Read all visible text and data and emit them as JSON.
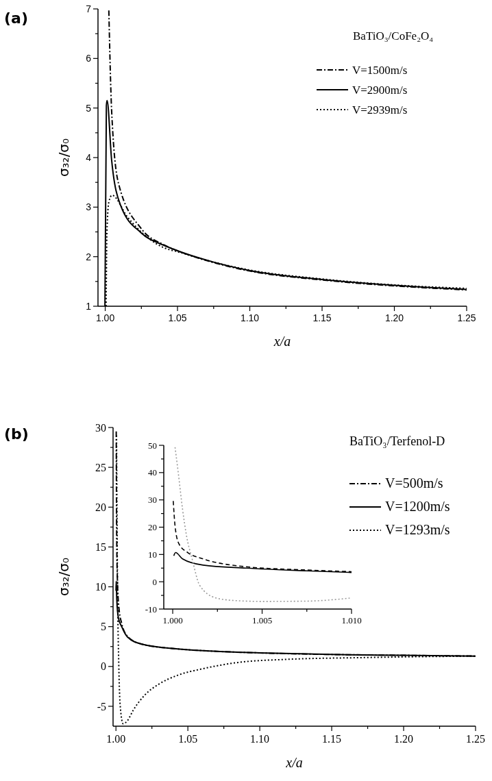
{
  "chart_data": [
    {
      "type": "line",
      "title": "(a)",
      "xlabel": "x/a",
      "ylabel": "σ₃₂/σ₀",
      "legend_title": "BaTiO₃/CoFe₂O₄",
      "legend": "top right",
      "xlim": [
        0.995,
        1.25
      ],
      "xticks": [
        {
          "value": 1,
          "label": "1.00"
        },
        {
          "value": 1.025,
          "label": null
        },
        {
          "value": 1.05,
          "label": "1.05"
        },
        {
          "value": 1.075,
          "label": null
        },
        {
          "value": 1.1,
          "label": "1.10"
        },
        {
          "value": 1.125,
          "label": null
        },
        {
          "value": 1.15,
          "label": "1.15"
        },
        {
          "value": 1.175,
          "label": null
        },
        {
          "value": 1.2,
          "label": "1.20"
        },
        {
          "value": 1.225,
          "label": null
        },
        {
          "value": 1.25,
          "label": "1.25"
        }
      ],
      "ylim": [
        1,
        7
      ],
      "yticks": [
        1,
        {
          "value": 1.5,
          "label": null
        },
        2,
        {
          "value": 2.5,
          "label": null
        },
        3,
        {
          "value": 3.5,
          "label": null
        },
        4,
        {
          "value": 4.5,
          "label": null
        },
        5,
        {
          "value": 5.5,
          "label": null
        },
        6,
        {
          "value": 6.5,
          "label": null
        },
        7
      ],
      "series": [
        {
          "name": "V=1500m/s",
          "color": "#000000",
          "line_style": "dashdot",
          "x": [
            1.0025,
            1.0044,
            1.0091,
            1.0248,
            1.0406,
            1.05,
            1.075,
            1.1,
            1.15,
            1.2,
            1.25
          ],
          "values": [
            6.97,
            4.97,
            3.49,
            2.57,
            2.24,
            2.12,
            1.88,
            1.71,
            1.53,
            1.41,
            1.33
          ]
        },
        {
          "name": "V=2900m/s",
          "color": "#000000",
          "line_style": "solid",
          "x": [
            0.9998,
            1.0008,
            1.0013,
            1.0044,
            1.0107,
            1.0249,
            1.0406,
            1.05,
            1.075,
            1.1,
            1.15,
            1.2,
            1.25
          ],
          "values": [
            1,
            5.05,
            5.15,
            3.96,
            3.03,
            2.48,
            2.23,
            2.12,
            1.89,
            1.72,
            1.54,
            1.42,
            1.34
          ]
        },
        {
          "name": "V=2939m/s",
          "color": "#000000",
          "line_style": "dotted",
          "x": [
            1.0006,
            1.0012,
            1.0025,
            1.0047,
            1.0154,
            1.0296,
            1.0406,
            1.05,
            1.075,
            1.1,
            1.15,
            1.2,
            1.25
          ],
          "values": [
            1,
            2.5,
            3.1,
            3.24,
            2.8,
            2.38,
            2.18,
            2.1,
            1.89,
            1.73,
            1.55,
            1.43,
            1.36
          ]
        }
      ]
    },
    {
      "type": "line",
      "title": "(b)",
      "xlabel": "x/a",
      "ylabel": "σ₃₂/σ₀",
      "legend_title": "BaTiO₃/Terfenol-D",
      "legend": "top right",
      "xlim": [
        0.998,
        1.25
      ],
      "xticks": [
        {
          "value": 1,
          "label": "1.00"
        },
        {
          "value": 1.025,
          "label": null
        },
        {
          "value": 1.05,
          "label": "1.05"
        },
        {
          "value": 1.075,
          "label": null
        },
        {
          "value": 1.1,
          "label": "1.10"
        },
        {
          "value": 1.125,
          "label": null
        },
        {
          "value": 1.15,
          "label": "1.15"
        },
        {
          "value": 1.175,
          "label": null
        },
        {
          "value": 1.2,
          "label": "1.20"
        },
        {
          "value": 1.225,
          "label": null
        },
        {
          "value": 1.25,
          "label": "1.25"
        }
      ],
      "ylim": [
        -7.5,
        30
      ],
      "yticks": [
        -5,
        {
          "value": -2.5,
          "label": null
        },
        0,
        {
          "value": 2.5,
          "label": null
        },
        5,
        {
          "value": 7.5,
          "label": null
        },
        10,
        {
          "value": 12.5,
          "label": null
        },
        15,
        {
          "value": 17.5,
          "label": null
        },
        20,
        {
          "value": 22.5,
          "label": null
        },
        25,
        {
          "value": 27.5,
          "label": null
        },
        30
      ],
      "series": [
        {
          "name": "V=500m/s",
          "color": "#000000",
          "line_style": "dashdot",
          "x": [
            1.0002,
            1.0005,
            1.001,
            1.002,
            1.004,
            1.008,
            1.018,
            1.043,
            1.07,
            1.1,
            1.15,
            1.2,
            1.25
          ],
          "values": [
            29.5,
            17,
            11,
            7.5,
            5.4,
            3.8,
            2.8,
            2.2,
            1.9,
            1.7,
            1.5,
            1.4,
            1.3
          ]
        },
        {
          "name": "V=1200m/s",
          "color": "#000000",
          "line_style": "solid",
          "x": [
            1.00005,
            1.00016,
            1.0006,
            1.0017,
            1.004,
            1.008,
            1.018,
            1.043,
            1.07,
            1.1,
            1.15,
            1.2,
            1.25
          ],
          "values": [
            9.5,
            10.7,
            8.4,
            6.1,
            5.0,
            3.7,
            2.8,
            2.2,
            1.9,
            1.7,
            1.5,
            1.4,
            1.3
          ]
        },
        {
          "name": "V=1293m/s",
          "color": "#000000",
          "line_style": "dotted",
          "x": [
            1.0004,
            1.001,
            1.002,
            1.003,
            1.005,
            1.008,
            1.012,
            1.02,
            1.03,
            1.043,
            1.06,
            1.085,
            1.12,
            1.168,
            1.2,
            1.25
          ],
          "values": [
            29,
            12,
            0,
            -5,
            -7.2,
            -6.8,
            -5.5,
            -3.6,
            -2.2,
            -1.1,
            -0.3,
            0.5,
            0.9,
            1.1,
            1.2,
            1.3
          ]
        }
      ]
    },
    {
      "type": "line",
      "xlim": [
        0.9995,
        1.01
      ],
      "xticks": [
        {
          "value": 1,
          "label": "1.000"
        },
        {
          "value": 1.0025,
          "label": null
        },
        {
          "value": 1.005,
          "label": "1.005"
        },
        {
          "value": 1.0075,
          "label": null
        },
        {
          "value": 1.01,
          "label": "1.010"
        }
      ],
      "ylim": [
        -10,
        50
      ],
      "yticks": [
        -10,
        {
          "value": -5,
          "label": null
        },
        0,
        {
          "value": 5,
          "label": null
        },
        10,
        {
          "value": 15,
          "label": null
        },
        20,
        {
          "value": 25,
          "label": null
        },
        30,
        {
          "value": 35,
          "label": null
        },
        40,
        {
          "value": 45,
          "label": null
        },
        50
      ],
      "series": [
        {
          "color": "#000000",
          "line_style": "dashed",
          "x": [
            1.00003,
            1.00013,
            1.00034,
            1.00084,
            1.0017,
            1.0041,
            1.0075,
            1.01
          ],
          "values": [
            29.6,
            20.5,
            14,
            10.7,
            8.4,
            5.5,
            4.3,
            3.7
          ]
        },
        {
          "color": "#000000",
          "line_style": "solid",
          "x": [
            1.00006,
            1.00016,
            1.00055,
            1.0017,
            1.0041,
            1.0075,
            1.01
          ],
          "values": [
            9.5,
            10.7,
            8.4,
            6.1,
            5.0,
            4.0,
            3.4
          ]
        },
        {
          "color": "#999999",
          "line_style": "dotted",
          "x": [
            1.00013,
            1.0003,
            1.00055,
            1.00076,
            1.0011,
            1.0015,
            1.0024,
            1.0035,
            1.005,
            1.0075,
            1.0099
          ],
          "values": [
            49.3,
            40.5,
            26.6,
            17.3,
            8,
            -1.2,
            -5.9,
            -6.9,
            -7.2,
            -7.1,
            -6.0
          ]
        }
      ]
    }
  ]
}
